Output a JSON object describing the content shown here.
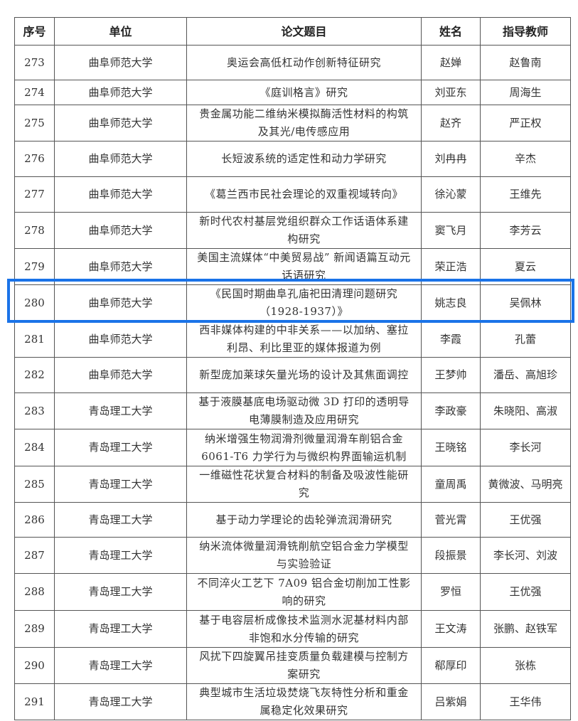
{
  "headers": [
    "序号",
    "单位",
    "论文题目",
    "姓名",
    "指导教师"
  ],
  "highlight_color": "#1a73e8",
  "highlighted_row": "280",
  "rows": [
    {
      "no": "273",
      "unit": "曲阜师范大学",
      "title": "奥运会高低杠动作创新特征研究",
      "name": "赵婵",
      "advisor": "赵鲁南"
    },
    {
      "no": "274",
      "unit": "曲阜师范大学",
      "title": "《庭训格言》研究",
      "name": "刘亚东",
      "advisor": "周海生"
    },
    {
      "no": "275",
      "unit": "曲阜师范大学",
      "title": "贵金属功能二维纳米模拟酶活性材料的构筑\n及其光/电传感应用",
      "name": "赵齐",
      "advisor": "严正权"
    },
    {
      "no": "276",
      "unit": "曲阜师范大学",
      "title": "长短波系统的适定性和动力学研究",
      "name": "刘冉冉",
      "advisor": "辛杰"
    },
    {
      "no": "277",
      "unit": "曲阜师范大学",
      "title": "《葛兰西市民社会理论的双重视域转向》",
      "name": "徐沁蒙",
      "advisor": "王维先"
    },
    {
      "no": "278",
      "unit": "曲阜师范大学",
      "title": "新时代农村基层党组织群众工作话语体系建\n构研究",
      "name": "窦飞月",
      "advisor": "李芳云"
    },
    {
      "no": "279",
      "unit": "曲阜师范大学",
      "title": "美国主流媒体“中美贸易战” 新闻语篇互动元\n话语研究",
      "name": "荣正浩",
      "advisor": "夏云"
    },
    {
      "no": "280",
      "unit": "曲阜师范大学",
      "title": "《民国时期曲阜孔庙祀田清理问题研究\n（1928-1937）》",
      "name": "姚志良",
      "advisor": "吴佩林"
    },
    {
      "no": "281",
      "unit": "曲阜师范大学",
      "title": "西非媒体构建的中非关系——以加纳、塞拉\n利昂、利比里亚的媒体报道为例",
      "name": "李霞",
      "advisor": "孔蕾"
    },
    {
      "no": "282",
      "unit": "曲阜师范大学",
      "title": "新型庞加莱球矢量光场的设计及其焦面调控",
      "name": "王梦帅",
      "advisor": "潘岳、高旭珍"
    },
    {
      "no": "283",
      "unit": "青岛理工大学",
      "title": "基于液膜基底电场驱动微 3D 打印的透明导\n电薄膜制造及应用研究",
      "name": "李政豪",
      "advisor": "朱晓阳、高淑"
    },
    {
      "no": "284",
      "unit": "青岛理工大学",
      "title": "纳米增强生物润滑剂微量润滑车削铝合金\n6061-T6 力学行为与微织构界面输运机制",
      "name": "王晓铭",
      "advisor": "李长河"
    },
    {
      "no": "285",
      "unit": "青岛理工大学",
      "title": "一维磁性花状复合材料的制备及吸波性能研\n究",
      "name": "童周禹",
      "advisor": "黄微波、马明亮"
    },
    {
      "no": "286",
      "unit": "青岛理工大学",
      "title": "基于动力学理论的齿轮弹流润滑研究",
      "name": "菅光霄",
      "advisor": "王优强"
    },
    {
      "no": "287",
      "unit": "青岛理工大学",
      "title": "纳米流体微量润滑铣削航空铝合金力学模型\n与实验验证",
      "name": "段振景",
      "advisor": "李长河、刘波"
    },
    {
      "no": "288",
      "unit": "青岛理工大学",
      "title": "不同淬火工艺下 7A09 铝合金切削加工性影\n响的研究",
      "name": "罗恒",
      "advisor": "王优强"
    },
    {
      "no": "289",
      "unit": "青岛理工大学",
      "title": "基于电容层析成像技术监测水泥基材料内部\n非饱和水分传输的研究",
      "name": "王文涛",
      "advisor": "张鹏、赵铁军"
    },
    {
      "no": "290",
      "unit": "青岛理工大学",
      "title": "风扰下四旋翼吊挂变质量负载建模与控制方\n案研究",
      "name": "郗厚印",
      "advisor": "张栋"
    },
    {
      "no": "291",
      "unit": "青岛理工大学",
      "title": "典型城市生活垃圾焚烧飞灰特性分析和重金\n属稳定化效果研究",
      "name": "吕紫娟",
      "advisor": "王华伟"
    }
  ]
}
